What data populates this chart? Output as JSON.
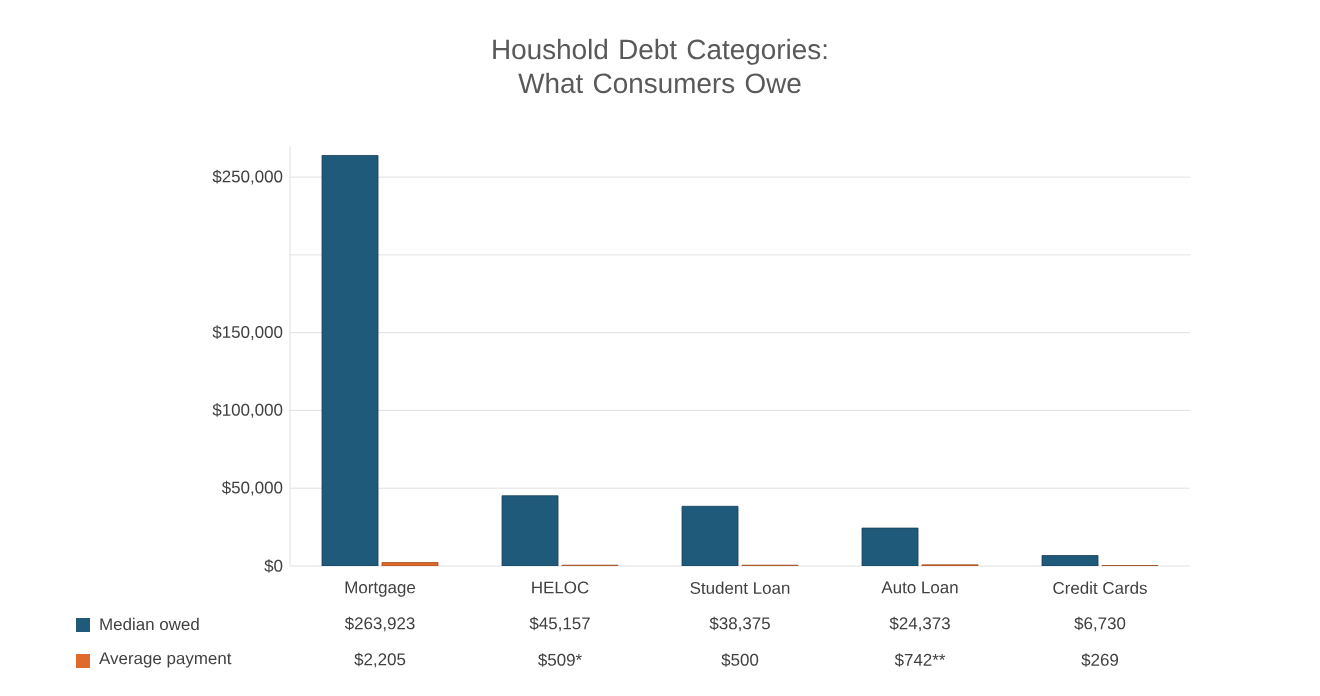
{
  "chart_data": {
    "type": "bar",
    "title": "Houshold Debt Categories:\nWhat Consumers Owe",
    "categories": [
      "Mortgage",
      "HELOC",
      "Student Loan",
      "Auto Loan",
      "Credit Cards"
    ],
    "series": [
      {
        "name": "Median owed",
        "color": "#1f5a7a",
        "values": [
          263923,
          45157,
          38375,
          24373,
          6730
        ],
        "value_labels": [
          "$263,923",
          "$45,157",
          "$38,375",
          "$24,373",
          "$6,730"
        ]
      },
      {
        "name": "Average payment",
        "color": "#e06a2c",
        "values": [
          2205,
          509,
          500,
          742,
          269
        ],
        "value_labels": [
          "$2,205",
          "$509*",
          "$500",
          "$742**",
          "$269"
        ]
      }
    ],
    "ylim": [
      0,
      270000
    ],
    "yticks": [
      {
        "value": 0,
        "label": "$0"
      },
      {
        "value": 50000,
        "label": "$50,000"
      },
      {
        "value": 100000,
        "label": "$100,000"
      },
      {
        "value": 150000,
        "label": "$150,000"
      },
      {
        "value": 200000,
        "label": null
      },
      {
        "value": 250000,
        "label": "$250,000"
      }
    ],
    "grid": "y",
    "legend": "bottom"
  }
}
